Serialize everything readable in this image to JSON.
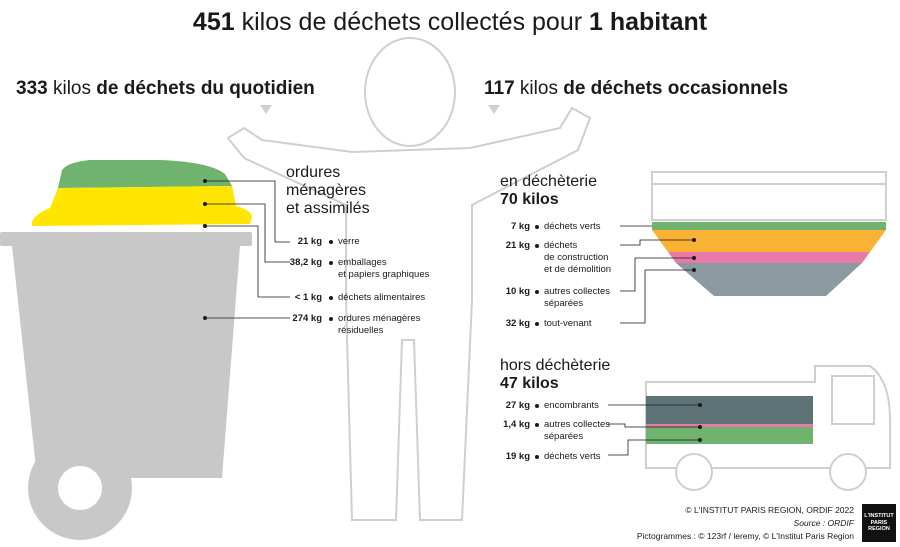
{
  "title": {
    "num": "451",
    "text": " kilos de déchets collectés pour ",
    "strong": "1 habitant"
  },
  "daily": {
    "num": "333",
    "kilos": " kilos ",
    "strong": "de déchets du quotidien"
  },
  "occasional": {
    "num": "117",
    "kilos": " kilos ",
    "strong": "de déchets occasionnels"
  },
  "omr": {
    "heading": [
      "ordures",
      "ménagères",
      "et assimilés"
    ],
    "items": [
      {
        "kg": "21 kg",
        "label": [
          "verre"
        ]
      },
      {
        "kg": "38,2 kg",
        "label": [
          "emballages",
          "et papiers graphiques"
        ]
      },
      {
        "kg": "< 1 kg",
        "label": [
          "déchets alimentaires"
        ]
      },
      {
        "kg": "274 kg",
        "label": [
          "ordures ménagères",
          "résiduelles"
        ]
      }
    ]
  },
  "decheterie": {
    "heading": [
      "en déchèterie",
      "70 kilos"
    ],
    "items": [
      {
        "kg": "7 kg",
        "label": [
          "déchets verts"
        ]
      },
      {
        "kg": "21 kg",
        "label": [
          "déchets",
          "de construction",
          "et de démolition"
        ]
      },
      {
        "kg": "10 kg",
        "label": [
          "autres collectes",
          "séparées"
        ]
      },
      {
        "kg": "32 kg",
        "label": [
          "tout-venant"
        ]
      }
    ]
  },
  "hors": {
    "heading": [
      "hors déchèterie",
      "47 kilos"
    ],
    "items": [
      {
        "kg": "27 kg",
        "label": [
          "encombrants"
        ]
      },
      {
        "kg": "1,4 kg",
        "label": [
          "autres collectes",
          "séparées"
        ]
      },
      {
        "kg": "19 kg",
        "label": [
          "déchets verts"
        ]
      }
    ]
  },
  "credits": {
    "line1": "© L'INSTITUT PARIS REGION, ORDIF 2022",
    "line2": "Source : ORDIF",
    "line3": "Pictogrammes : © 123rf / leremy, © L'Institut Paris Region"
  },
  "logo": [
    "L'INSTITUT",
    "PARIS",
    "REGION"
  ],
  "colors": {
    "green": "#6fb36e",
    "yellow": "#ffe600",
    "grey": "#c8c8c8",
    "orange": "#f9b233",
    "pink": "#e87aa8",
    "slate": "#8a9aa0",
    "dark_slate": "#5d7376"
  }
}
